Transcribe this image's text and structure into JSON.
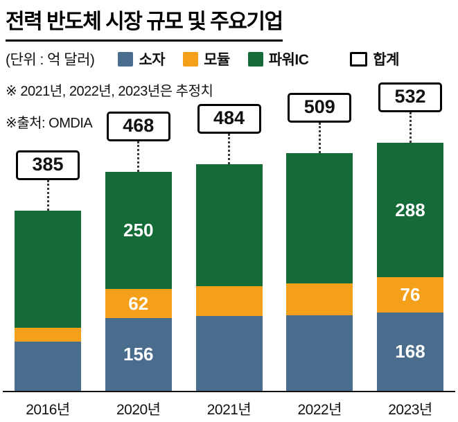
{
  "title": "전력 반도체 시장 규모 및 주요기업",
  "legend": {
    "unit": "(단위 : 억 달러)",
    "items": [
      {
        "label": "소자",
        "color": "#4a6d8e",
        "outline": false
      },
      {
        "label": "모듈",
        "color": "#f5a01b",
        "outline": false
      },
      {
        "label": "파워IC",
        "color": "#156b38",
        "outline": false
      },
      {
        "label": "합계",
        "color": "#ffffff",
        "outline": true
      }
    ]
  },
  "notes": {
    "estimate": "※ 2021년, 2022년, 2023년은 추정치",
    "source": "※출처: OMDIA"
  },
  "chart_data": {
    "type": "bar",
    "stacked": true,
    "title": "전력 반도체 시장 규모 및 주요기업",
    "unit": "억 달러",
    "legend_position": "top",
    "categories": [
      "2016년",
      "2020년",
      "2021년",
      "2022년",
      "2023년"
    ],
    "totals": [
      385,
      468,
      484,
      509,
      532
    ],
    "series": [
      {
        "name": "소자",
        "color": "#4a6d8e",
        "values": [
          105,
          156,
          160,
          162,
          168
        ],
        "labels": [
          "",
          "156",
          "",
          "",
          "168"
        ]
      },
      {
        "name": "모듈",
        "color": "#f5a01b",
        "values": [
          30,
          62,
          64,
          68,
          76
        ],
        "labels": [
          "",
          "62",
          "",
          "",
          "76"
        ]
      },
      {
        "name": "파워IC",
        "color": "#156b38",
        "values": [
          250,
          250,
          260,
          279,
          288
        ],
        "labels": [
          "",
          "250",
          "",
          "",
          "288"
        ]
      }
    ]
  }
}
